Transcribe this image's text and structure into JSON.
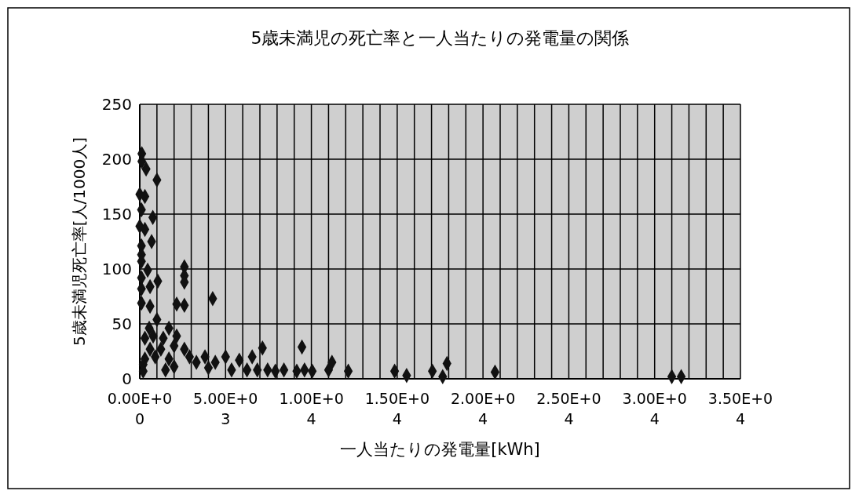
{
  "chart_data": {
    "type": "scatter",
    "title": "5歳未満児の死亡率と一人当たりの発電量の関係",
    "xlabel": "一人当たりの発電量[kWh]",
    "ylabel": "5歳未満児死亡率[人/1000人]",
    "xlim": [
      0,
      35000
    ],
    "xticks": [
      {
        "value": 0,
        "label": "0.00E+00"
      },
      {
        "value": 1000,
        "label": null
      },
      {
        "value": 2000,
        "label": null
      },
      {
        "value": 3000,
        "label": null
      },
      {
        "value": 4000,
        "label": null
      },
      {
        "value": 5000,
        "label": "5.00E+03"
      },
      {
        "value": 6000,
        "label": null
      },
      {
        "value": 7000,
        "label": null
      },
      {
        "value": 8000,
        "label": null
      },
      {
        "value": 9000,
        "label": null
      },
      {
        "value": 10000,
        "label": "1.00E+04"
      },
      {
        "value": 11000,
        "label": null
      },
      {
        "value": 12000,
        "label": null
      },
      {
        "value": 13000,
        "label": null
      },
      {
        "value": 14000,
        "label": null
      },
      {
        "value": 15000,
        "label": "1.50E+04"
      },
      {
        "value": 16000,
        "label": null
      },
      {
        "value": 17000,
        "label": null
      },
      {
        "value": 18000,
        "label": null
      },
      {
        "value": 19000,
        "label": null
      },
      {
        "value": 20000,
        "label": "2.00E+04"
      },
      {
        "value": 21000,
        "label": null
      },
      {
        "value": 22000,
        "label": null
      },
      {
        "value": 23000,
        "label": null
      },
      {
        "value": 24000,
        "label": null
      },
      {
        "value": 25000,
        "label": "2.50E+04"
      },
      {
        "value": 26000,
        "label": null
      },
      {
        "value": 27000,
        "label": null
      },
      {
        "value": 28000,
        "label": null
      },
      {
        "value": 29000,
        "label": null
      },
      {
        "value": 30000,
        "label": "3.00E+04"
      },
      {
        "value": 31000,
        "label": null
      },
      {
        "value": 32000,
        "label": null
      },
      {
        "value": 33000,
        "label": null
      },
      {
        "value": 34000,
        "label": null
      },
      {
        "value": 35000,
        "label": "3.50E+04"
      }
    ],
    "ylim": [
      0,
      250
    ],
    "yticks": [
      0,
      50,
      100,
      150,
      200,
      250
    ],
    "grid": true,
    "marker": "diamond",
    "series": [
      {
        "color": "#111111",
        "x": [
          120,
          120,
          370,
          1000,
          0,
          300,
          100,
          760,
          0,
          300,
          690,
          100,
          100,
          100,
          460,
          100,
          1050,
          2600,
          2600,
          2600,
          100,
          600,
          4250,
          2150,
          2600,
          100,
          600,
          1000,
          550,
          300,
          780,
          1700,
          1370,
          2150,
          2000,
          1230,
          600,
          2600,
          300,
          900,
          1700,
          2900,
          200,
          200,
          1500,
          2000,
          3300,
          3800,
          4400,
          4000,
          5000,
          5800,
          5350,
          6550,
          7150,
          6250,
          6850,
          7450,
          7900,
          8400,
          9150,
          9600,
          10050,
          9450,
          11000,
          11200,
          12150,
          14850,
          15550,
          17050,
          17900,
          17650,
          20700,
          31000,
          31550
        ],
        "values": [
          205,
          198,
          191,
          181,
          168,
          166,
          154,
          147,
          139,
          136,
          125,
          121,
          113,
          107,
          99,
          92,
          89,
          102,
          94,
          88,
          82,
          84,
          73,
          68,
          67,
          69,
          66,
          54,
          46,
          37,
          39,
          46,
          37,
          39,
          30,
          27,
          27,
          27,
          18,
          20,
          18,
          20,
          13,
          7,
          8,
          11,
          15,
          20,
          15,
          10,
          20,
          17,
          8,
          20,
          28,
          8,
          8,
          8,
          7,
          8,
          7,
          8,
          7,
          29,
          8,
          15,
          7,
          7,
          3,
          7,
          14,
          2,
          6,
          2,
          2
        ]
      }
    ]
  }
}
